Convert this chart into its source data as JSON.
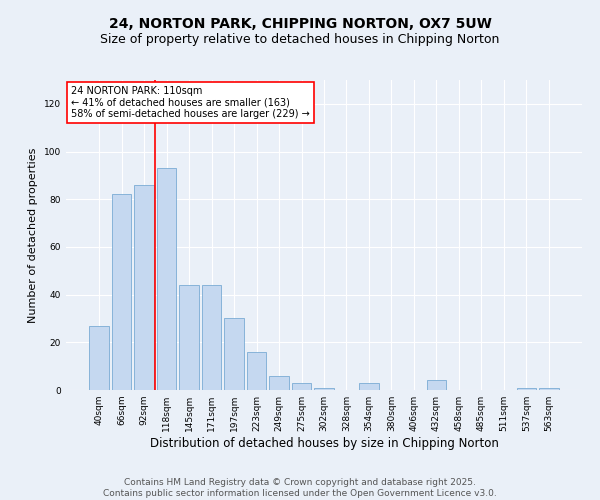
{
  "title": "24, NORTON PARK, CHIPPING NORTON, OX7 5UW",
  "subtitle": "Size of property relative to detached houses in Chipping Norton",
  "xlabel": "Distribution of detached houses by size in Chipping Norton",
  "ylabel": "Number of detached properties",
  "categories": [
    "40sqm",
    "66sqm",
    "92sqm",
    "118sqm",
    "145sqm",
    "171sqm",
    "197sqm",
    "223sqm",
    "249sqm",
    "275sqm",
    "302sqm",
    "328sqm",
    "354sqm",
    "380sqm",
    "406sqm",
    "432sqm",
    "458sqm",
    "485sqm",
    "511sqm",
    "537sqm",
    "563sqm"
  ],
  "values": [
    27,
    82,
    86,
    93,
    44,
    44,
    30,
    16,
    6,
    3,
    1,
    0,
    3,
    0,
    0,
    4,
    0,
    0,
    0,
    1,
    1
  ],
  "bar_color": "#c5d8f0",
  "bar_edge_color": "#7aacd4",
  "annotation_text": "24 NORTON PARK: 110sqm\n← 41% of detached houses are smaller (163)\n58% of semi-detached houses are larger (229) →",
  "annotation_box_color": "white",
  "annotation_box_edge": "red",
  "red_line_x": 2.5,
  "ylim": [
    0,
    130
  ],
  "yticks": [
    0,
    20,
    40,
    60,
    80,
    100,
    120
  ],
  "background_color": "#eaf0f8",
  "grid_color": "white",
  "footer_line1": "Contains HM Land Registry data © Crown copyright and database right 2025.",
  "footer_line2": "Contains public sector information licensed under the Open Government Licence v3.0.",
  "title_fontsize": 10,
  "subtitle_fontsize": 9,
  "xlabel_fontsize": 8.5,
  "ylabel_fontsize": 8,
  "tick_fontsize": 6.5,
  "annotation_fontsize": 7,
  "footer_fontsize": 6.5
}
